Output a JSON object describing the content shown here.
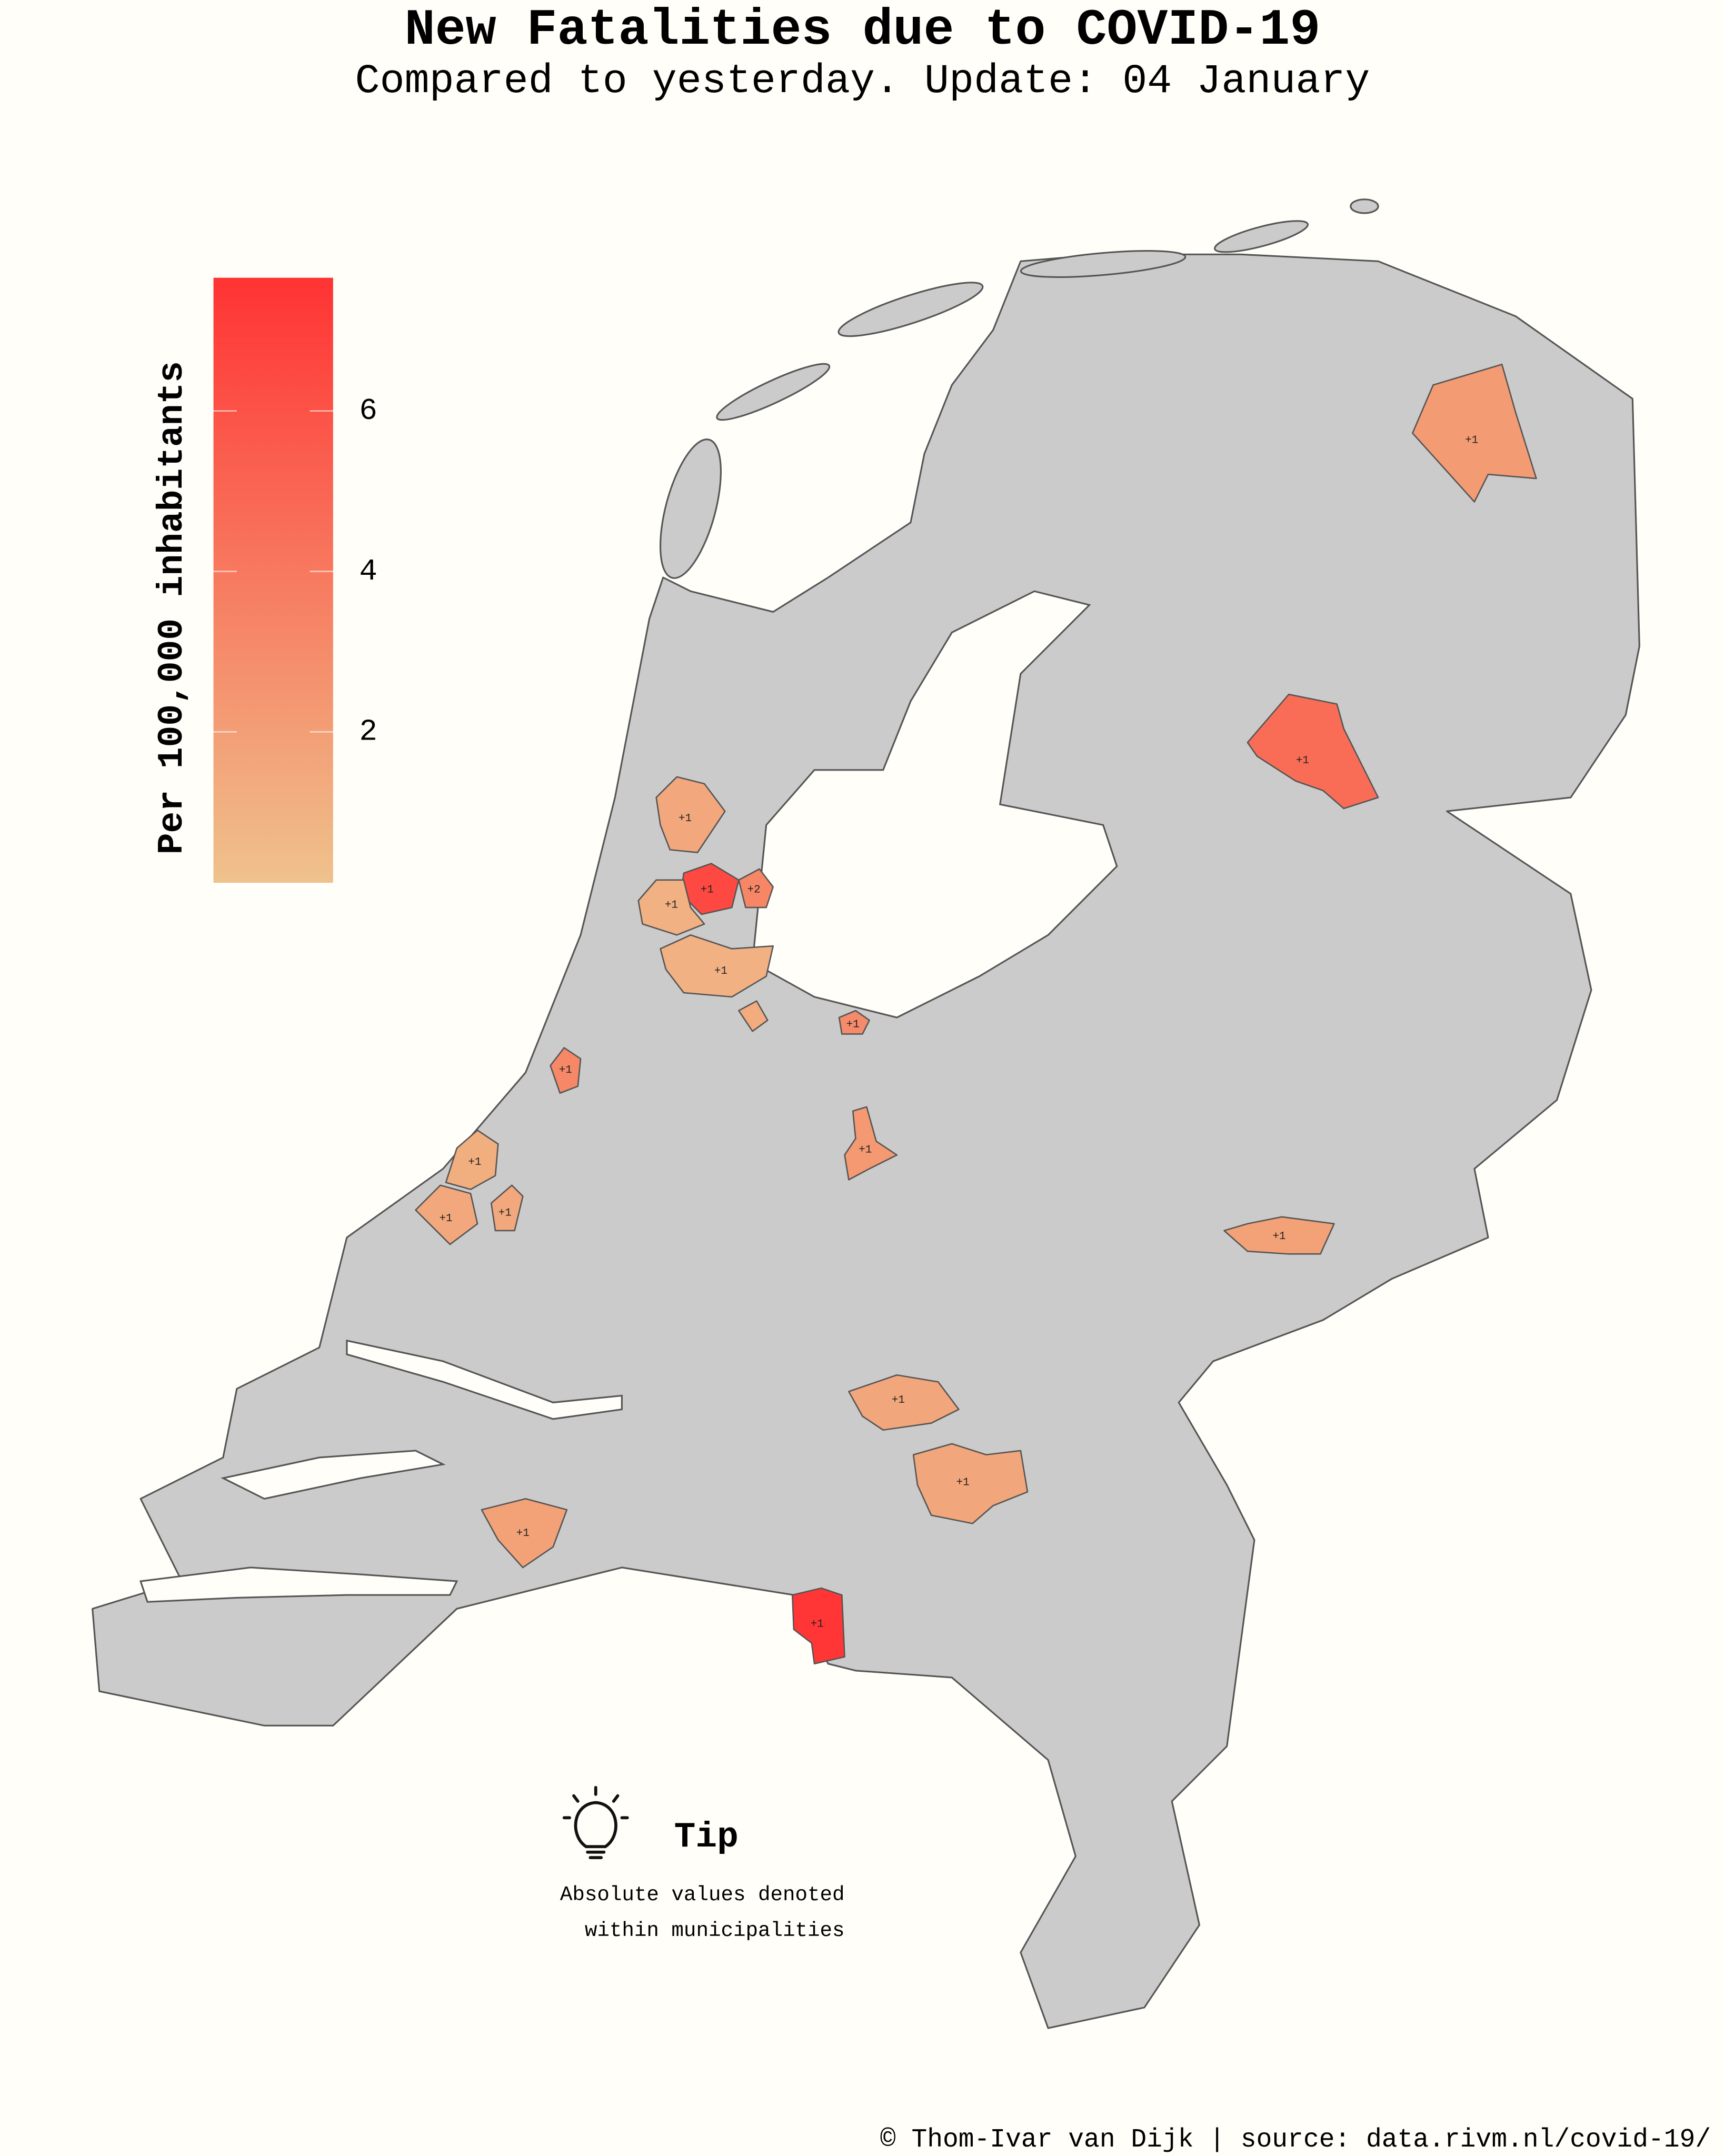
{
  "title": "New Fatalities due to COVID-19",
  "subtitle": "Compared to yesterday. Update: 04 January",
  "legend": {
    "title": "Per 100,000 inhabitants",
    "range": [
      0.12,
      7.66
    ],
    "ticks": [
      2,
      4,
      6
    ],
    "colors": [
      "#efc28c",
      "#ff3333"
    ]
  },
  "municipalities": [
    {
      "label": "+1",
      "rate": 2.2
    },
    {
      "label": "+1",
      "rate": 4.6
    },
    {
      "label": "+1",
      "rate": 1.5
    },
    {
      "label": "+1",
      "rate": 6.5
    },
    {
      "label": "+2",
      "rate": 3.3
    },
    {
      "label": "+1",
      "rate": 1.0
    },
    {
      "label": "+1",
      "rate": 1.0
    },
    {
      "label": null,
      "rate": 1.3
    },
    {
      "label": "+1",
      "rate": 3.0
    },
    {
      "label": "+1",
      "rate": 3.2
    },
    {
      "label": "+1",
      "rate": 2.3
    },
    {
      "label": "+1",
      "rate": 1.2
    },
    {
      "label": "+1",
      "rate": 1.5
    },
    {
      "label": "+1",
      "rate": 1.5
    },
    {
      "label": "+1",
      "rate": 1.8
    },
    {
      "label": "+1",
      "rate": 1.6
    },
    {
      "label": "+1",
      "rate": 1.6
    },
    {
      "label": "+1",
      "rate": 1.8
    },
    {
      "label": "+1",
      "rate": 7.5
    }
  ],
  "tip": {
    "title": "Tip",
    "lines": [
      "Absolute values denoted",
      "within municipalities"
    ]
  },
  "footer": "© Thom-Ivar van Dijk | source: data.rivm.nl/covid-19/"
}
